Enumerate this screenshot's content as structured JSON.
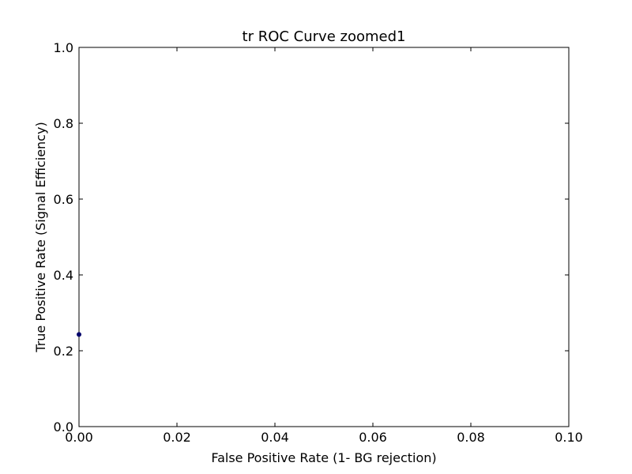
{
  "chart_data": {
    "type": "scatter",
    "title": "tr ROC Curve zoomed1",
    "xlabel": "False Positive Rate (1- BG rejection)",
    "ylabel": "True Positive Rate (Signal Efficiency)",
    "xlim": [
      0.0,
      0.1
    ],
    "ylim": [
      0.0,
      1.0
    ],
    "xticks": [
      "0.00",
      "0.02",
      "0.04",
      "0.06",
      "0.08",
      "0.10"
    ],
    "yticks": [
      "0.0",
      "0.2",
      "0.4",
      "0.6",
      "0.8",
      "1.0"
    ],
    "grid": false,
    "series": [
      {
        "color": "#00006b",
        "x": [
          0.0
        ],
        "y": [
          0.243
        ]
      }
    ]
  }
}
